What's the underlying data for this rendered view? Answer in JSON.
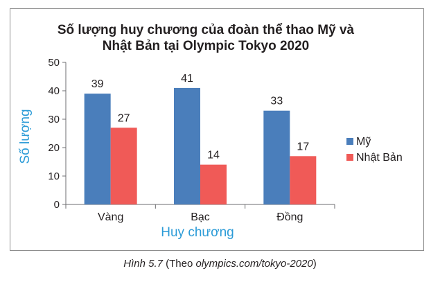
{
  "chart_data": {
    "type": "bar",
    "title": [
      "Số lượng huy chương của đoàn thể thao Mỹ và",
      "Nhật Bản tại Olympic Tokyo 2020"
    ],
    "xlabel": "Huy chương",
    "ylabel": "Số lượng",
    "categories": [
      "Vàng",
      "Bạc",
      "Đồng"
    ],
    "series": [
      {
        "name": "Mỹ",
        "values": [
          39,
          41,
          33
        ],
        "color": "#4a7ebb"
      },
      {
        "name": "Nhật Bản",
        "values": [
          27,
          14,
          17
        ],
        "color": "#f05a57"
      }
    ],
    "ylim": [
      0,
      50
    ],
    "yticks": [
      0,
      10,
      20,
      30,
      40,
      50
    ],
    "grid": false,
    "legend": "right",
    "axis_title_color": "#2b9bd7"
  },
  "caption": {
    "figure": "Hình 5.7",
    "open": " (Theo ",
    "source": "olympics.com/tokyo-2020",
    "close": ")"
  }
}
